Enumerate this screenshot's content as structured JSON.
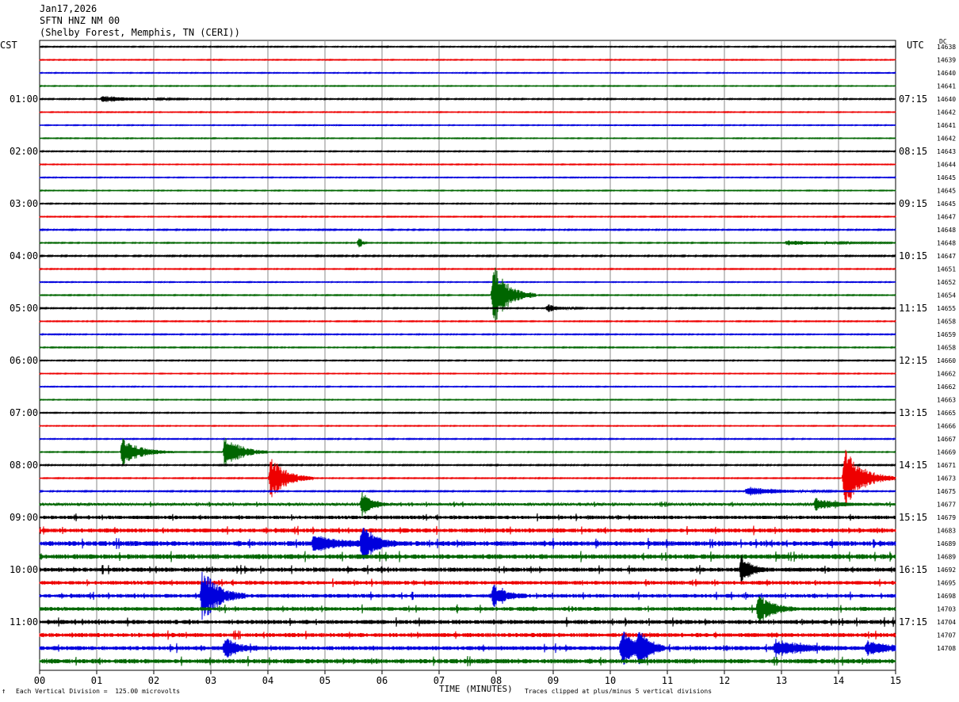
{
  "header": {
    "date": "Jan17,2026",
    "station": "SFTN HNZ NM 00",
    "location": "(Shelby Forest, Memphis, TN (CERI))"
  },
  "left_tz": "CST",
  "right_tz": "UTC",
  "dc_label": "DC",
  "footer": {
    "scale": "Each Vertical Division =  125.00 microvolts",
    "xlabel": "TIME (MINUTES)",
    "clip": "Traces clipped at plus/minus 5 vertical divisions",
    "mark": "↑"
  },
  "chart_data": {
    "type": "line",
    "title": "SFTN HNZ NM 00",
    "xlabel": "TIME (MINUTES)",
    "xlim": [
      0,
      15
    ],
    "x_ticks": [
      "00",
      "01",
      "02",
      "03",
      "04",
      "05",
      "06",
      "07",
      "08",
      "09",
      "10",
      "11",
      "12",
      "13",
      "14",
      "15"
    ],
    "trace_count": 48,
    "trace_colors": [
      "#000000",
      "#ee0000",
      "#0000dd",
      "#006600"
    ],
    "left_time_labels": [
      "01:00",
      "02:00",
      "03:00",
      "04:00",
      "05:00",
      "06:00",
      "07:00",
      "08:00",
      "09:00",
      "10:00",
      "11:00"
    ],
    "right_time_labels": [
      "07:15",
      "08:15",
      "09:15",
      "10:15",
      "11:15",
      "12:15",
      "13:15",
      "14:15",
      "15:15",
      "16:15",
      "17:15"
    ],
    "dc_values": [
      "14638",
      "14639",
      "14640",
      "14641",
      "14640",
      "14642",
      "14641",
      "14642",
      "14643",
      "14644",
      "14645",
      "14645",
      "14645",
      "14647",
      "14648",
      "14648",
      "14647",
      "14651",
      "14652",
      "14654",
      "14655",
      "14658",
      "14659",
      "14658",
      "14660",
      "14662",
      "14662",
      "14663",
      "14665",
      "14666",
      "14667",
      "14669",
      "14671",
      "14673",
      "14675",
      "14677",
      "14679",
      "14683",
      "14689",
      "14689",
      "14692",
      "14695",
      "14698",
      "14703",
      "14704",
      "14707",
      "14708"
    ],
    "noise_levels": [
      0.6,
      0.5,
      0.5,
      0.5,
      0.7,
      0.5,
      0.5,
      0.5,
      0.6,
      0.5,
      0.5,
      0.5,
      0.6,
      0.6,
      0.7,
      0.6,
      0.8,
      0.6,
      0.5,
      0.6,
      0.7,
      0.6,
      0.6,
      0.6,
      0.6,
      0.5,
      0.5,
      0.5,
      0.6,
      0.5,
      0.6,
      0.6,
      0.7,
      0.6,
      0.7,
      1.5,
      2.2,
      2.6,
      3.0,
      3.0,
      2.6,
      2.4,
      2.3,
      2.4,
      2.6,
      2.6,
      2.6,
      2.8
    ],
    "events": [
      {
        "trace": 4,
        "minute": 1.1,
        "amplitude": 4,
        "duration": 0.5
      },
      {
        "trace": 15,
        "minute": 5.6,
        "amplitude": 8,
        "duration": 0.05
      },
      {
        "trace": 15,
        "minute": 13.1,
        "amplitude": 3,
        "duration": 0.6
      },
      {
        "trace": 19,
        "minute": 7.95,
        "amplitude": 40,
        "duration": 0.25
      },
      {
        "trace": 20,
        "minute": 8.9,
        "amplitude": 5,
        "duration": 0.2
      },
      {
        "trace": 31,
        "minute": 1.45,
        "amplitude": 18,
        "duration": 0.3
      },
      {
        "trace": 31,
        "minute": 3.25,
        "amplitude": 24,
        "duration": 0.25
      },
      {
        "trace": 33,
        "minute": 4.05,
        "amplitude": 30,
        "duration": 0.25
      },
      {
        "trace": 33,
        "minute": 14.1,
        "amplitude": 40,
        "duration": 0.3
      },
      {
        "trace": 34,
        "minute": 12.4,
        "amplitude": 6,
        "duration": 0.5
      },
      {
        "trace": 35,
        "minute": 5.65,
        "amplitude": 16,
        "duration": 0.15
      },
      {
        "trace": 35,
        "minute": 13.6,
        "amplitude": 8,
        "duration": 0.3
      },
      {
        "trace": 38,
        "minute": 5.65,
        "amplitude": 26,
        "duration": 0.2
      },
      {
        "trace": 38,
        "minute": 4.8,
        "amplitude": 10,
        "duration": 0.4
      },
      {
        "trace": 40,
        "minute": 12.3,
        "amplitude": 18,
        "duration": 0.15
      },
      {
        "trace": 42,
        "minute": 2.85,
        "amplitude": 36,
        "duration": 0.25
      },
      {
        "trace": 42,
        "minute": 7.95,
        "amplitude": 14,
        "duration": 0.2
      },
      {
        "trace": 43,
        "minute": 12.6,
        "amplitude": 22,
        "duration": 0.2
      },
      {
        "trace": 46,
        "minute": 3.25,
        "amplitude": 14,
        "duration": 0.2
      },
      {
        "trace": 46,
        "minute": 10.2,
        "amplitude": 24,
        "duration": 0.25
      },
      {
        "trace": 46,
        "minute": 10.5,
        "amplitude": 20,
        "duration": 0.15
      },
      {
        "trace": 46,
        "minute": 12.9,
        "amplitude": 10,
        "duration": 0.4
      },
      {
        "trace": 46,
        "minute": 14.5,
        "amplitude": 8,
        "duration": 0.4
      }
    ]
  }
}
